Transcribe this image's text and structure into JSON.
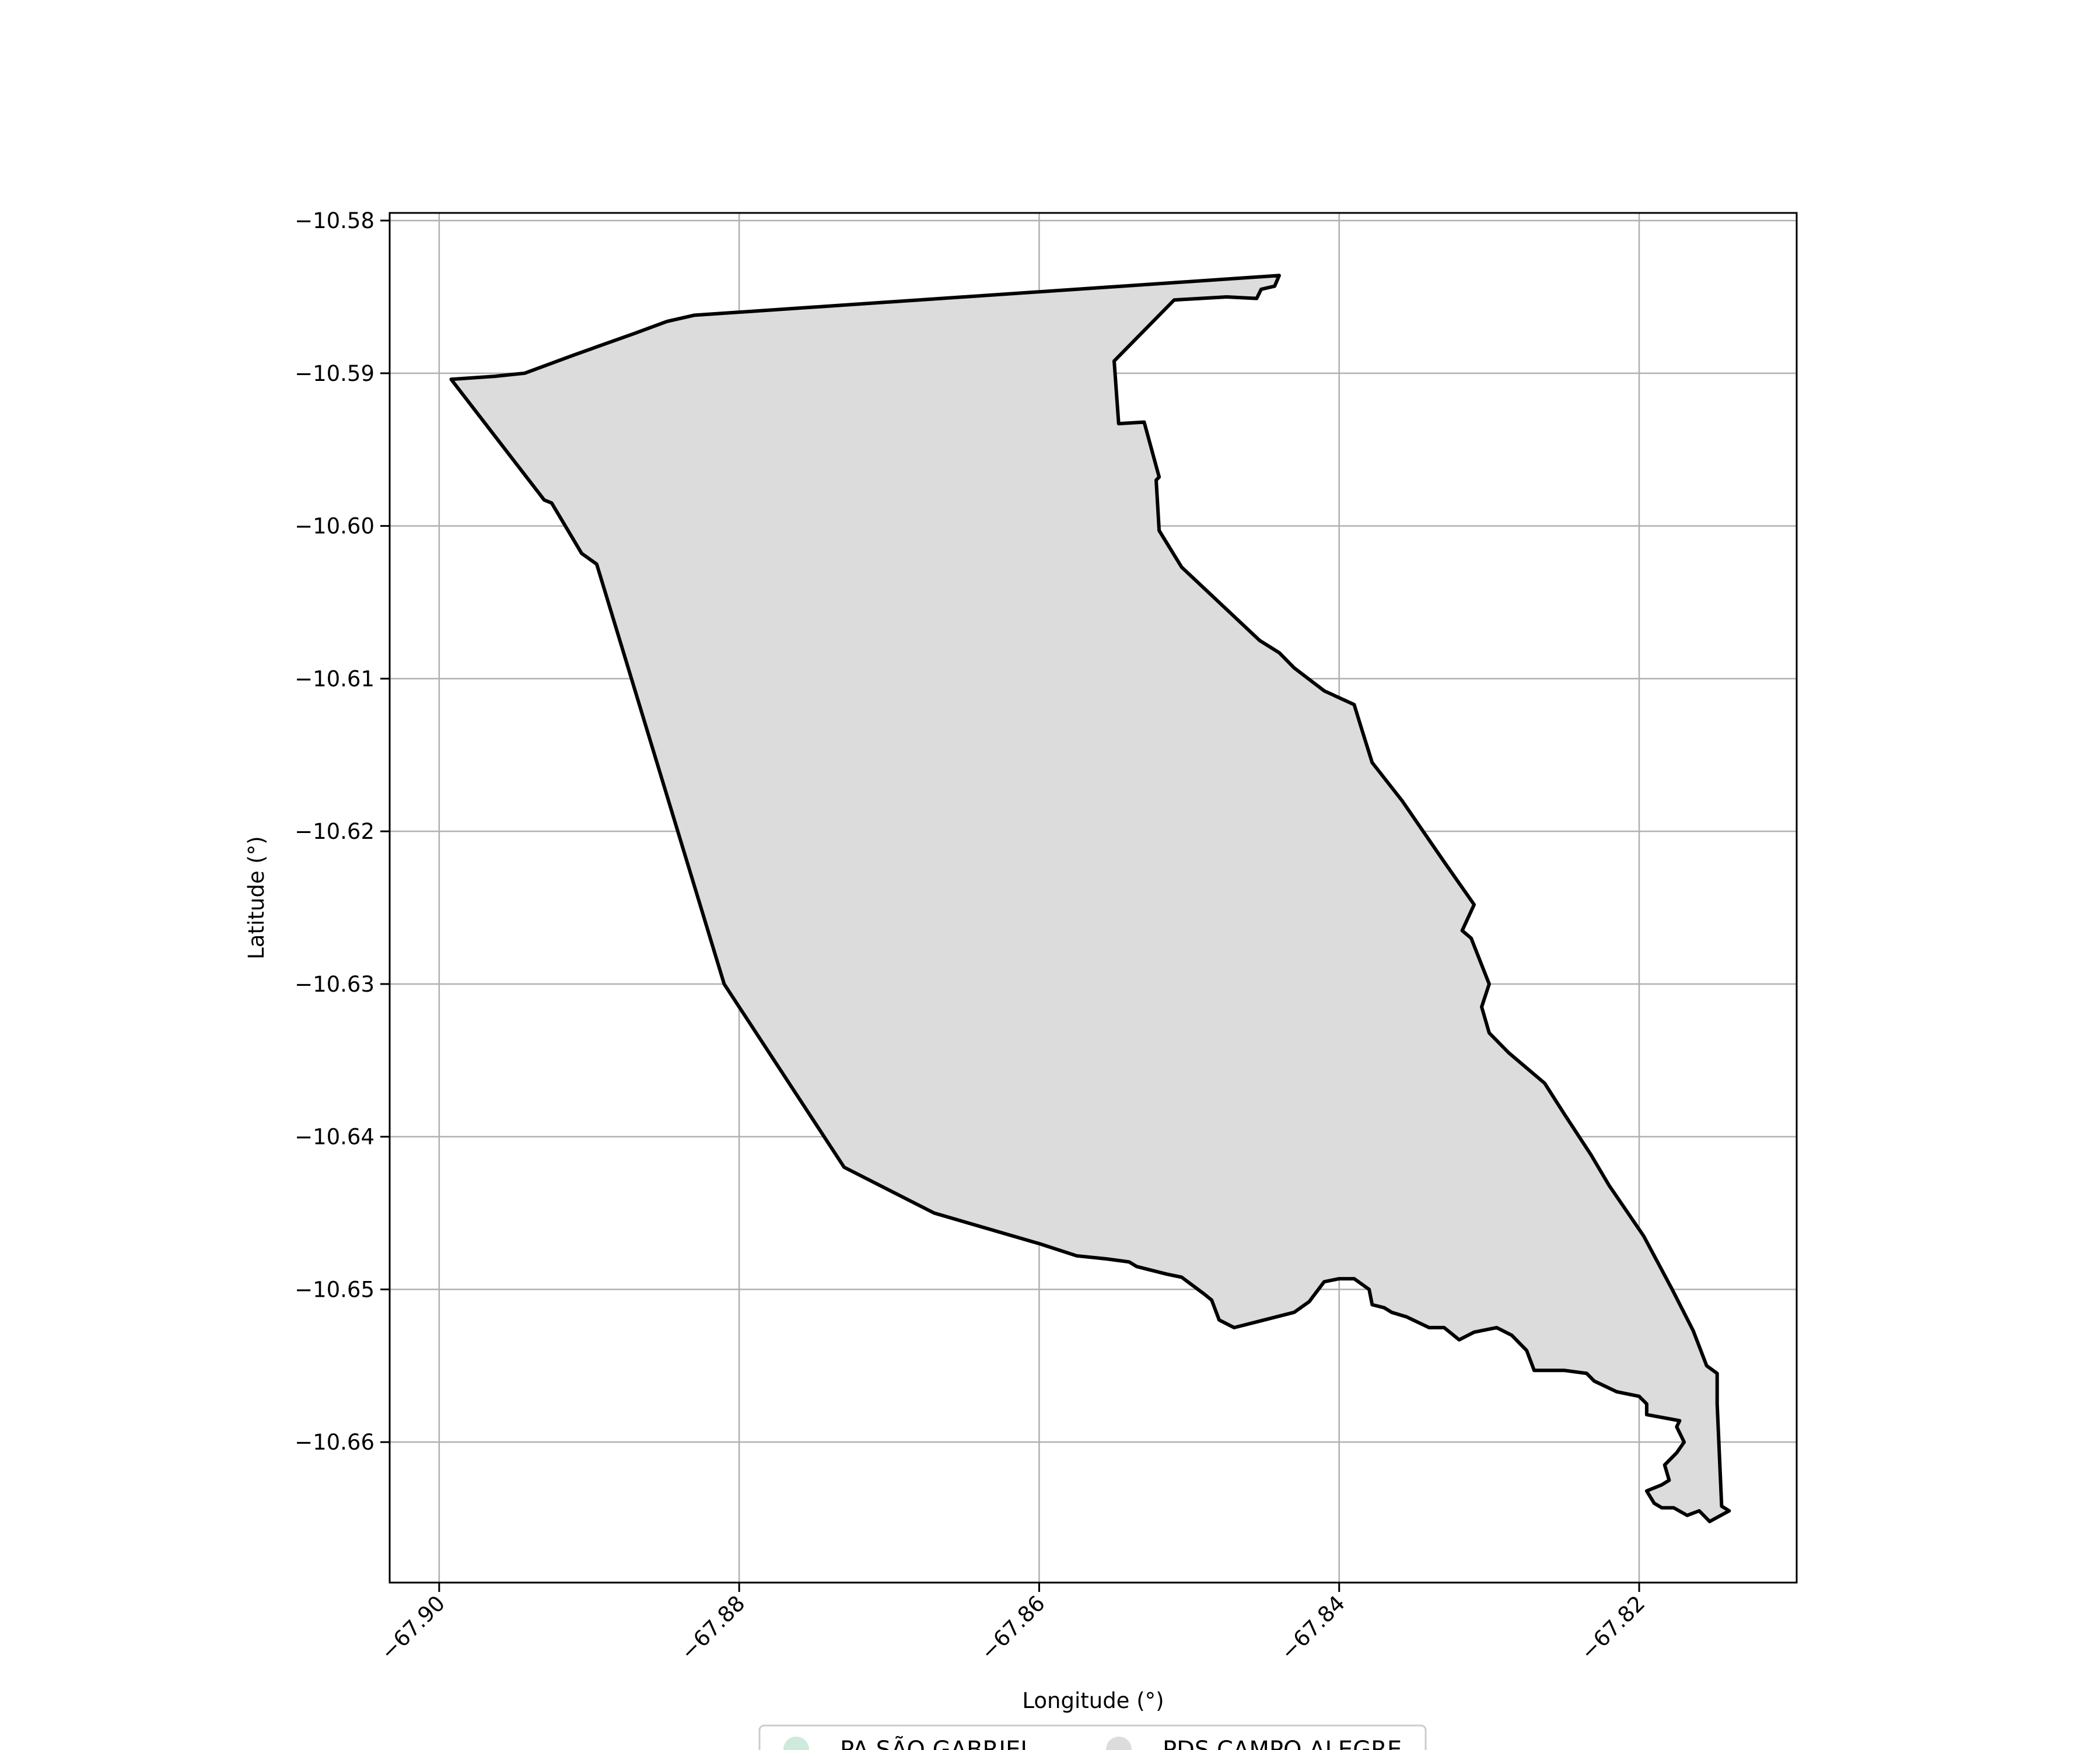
{
  "chart_data": {
    "type": "map",
    "xlabel": "Longitude (°)",
    "ylabel": "Latitude (°)",
    "xlim": [
      -67.9033,
      -67.8095
    ],
    "ylim": [
      -10.6692,
      -10.5795
    ],
    "x_ticks": [
      -67.9,
      -67.88,
      -67.86,
      -67.84,
      -67.82
    ],
    "x_tick_labels": [
      "−67.90",
      "−67.88",
      "−67.86",
      "−67.84",
      "−67.82"
    ],
    "y_ticks": [
      -10.58,
      -10.59,
      -10.6,
      -10.61,
      -10.62,
      -10.63,
      -10.64,
      -10.65,
      -10.66
    ],
    "y_tick_labels": [
      "−10.58",
      "−10.59",
      "−10.60",
      "−10.61",
      "−10.62",
      "−10.63",
      "−10.64",
      "−10.65",
      "−10.66"
    ],
    "grid": true,
    "legend": {
      "placement": "bottom-center",
      "entries": [
        {
          "label": "PA SÃO GABRIEL",
          "color": "#cdeadb"
        },
        {
          "label": "PDS CAMPO ALEGRE",
          "color": "#dcdcdc"
        }
      ]
    },
    "polygon": {
      "name": "PDS CAMPO ALEGRE",
      "fill": "#dcdcdc",
      "stroke": "#000000",
      "coords": [
        [
          -67.8992,
          -10.5904
        ],
        [
          -67.8963,
          -10.5902
        ],
        [
          -67.8943,
          -10.59
        ],
        [
          -67.891,
          -10.5888
        ],
        [
          -67.887,
          -10.5874
        ],
        [
          -67.8848,
          -10.5866
        ],
        [
          -67.883,
          -10.5862
        ],
        [
          -67.844,
          -10.5836
        ],
        [
          -67.8443,
          -10.5843
        ],
        [
          -67.8452,
          -10.5845
        ],
        [
          -67.8455,
          -10.5851
        ],
        [
          -67.8475,
          -10.585
        ],
        [
          -67.851,
          -10.5852
        ],
        [
          -67.855,
          -10.5892
        ],
        [
          -67.8547,
          -10.5933
        ],
        [
          -67.853,
          -10.5932
        ],
        [
          -67.852,
          -10.5968
        ],
        [
          -67.8522,
          -10.597
        ],
        [
          -67.852,
          -10.6003
        ],
        [
          -67.8505,
          -10.6027
        ],
        [
          -67.8453,
          -10.6075
        ],
        [
          -67.844,
          -10.6083
        ],
        [
          -67.843,
          -10.6093
        ],
        [
          -67.841,
          -10.6108
        ],
        [
          -67.839,
          -10.6117
        ],
        [
          -67.8385,
          -10.6133
        ],
        [
          -67.8378,
          -10.6155
        ],
        [
          -67.8358,
          -10.618
        ],
        [
          -67.833,
          -10.622
        ],
        [
          -67.831,
          -10.6248
        ],
        [
          -67.8318,
          -10.6265
        ],
        [
          -67.8312,
          -10.627
        ],
        [
          -67.83,
          -10.63
        ],
        [
          -67.8305,
          -10.6315
        ],
        [
          -67.83,
          -10.6332
        ],
        [
          -67.8287,
          -10.6345
        ],
        [
          -67.8263,
          -10.6365
        ],
        [
          -67.825,
          -10.6385
        ],
        [
          -67.824,
          -10.64
        ],
        [
          -67.8232,
          -10.6412
        ],
        [
          -67.822,
          -10.6432
        ],
        [
          -67.8197,
          -10.6465
        ],
        [
          -67.8178,
          -10.65
        ],
        [
          -67.8164,
          -10.6527
        ],
        [
          -67.8155,
          -10.655
        ],
        [
          -67.8148,
          -10.6555
        ],
        [
          -67.8148,
          -10.6575
        ],
        [
          -67.8145,
          -10.6642
        ],
        [
          -67.814,
          -10.6645
        ],
        [
          -67.8153,
          -10.6652
        ],
        [
          -67.816,
          -10.6645
        ],
        [
          -67.8168,
          -10.6648
        ],
        [
          -67.8177,
          -10.6643
        ],
        [
          -67.8185,
          -10.6643
        ],
        [
          -67.819,
          -10.664
        ],
        [
          -67.8195,
          -10.6632
        ],
        [
          -67.8185,
          -10.6628
        ],
        [
          -67.818,
          -10.6625
        ],
        [
          -67.8183,
          -10.6615
        ],
        [
          -67.8175,
          -10.6607
        ],
        [
          -67.817,
          -10.66
        ],
        [
          -67.8175,
          -10.659
        ],
        [
          -67.8173,
          -10.6586
        ],
        [
          -67.8195,
          -10.6582
        ],
        [
          -67.8195,
          -10.6575
        ],
        [
          -67.82,
          -10.657
        ],
        [
          -67.8215,
          -10.6567
        ],
        [
          -67.823,
          -10.656
        ],
        [
          -67.8235,
          -10.6555
        ],
        [
          -67.825,
          -10.6553
        ],
        [
          -67.827,
          -10.6553
        ],
        [
          -67.8275,
          -10.654
        ],
        [
          -67.8285,
          -10.653
        ],
        [
          -67.8295,
          -10.6525
        ],
        [
          -67.831,
          -10.6528
        ],
        [
          -67.832,
          -10.6533
        ],
        [
          -67.833,
          -10.6525
        ],
        [
          -67.834,
          -10.6525
        ],
        [
          -67.8355,
          -10.6518
        ],
        [
          -67.8365,
          -10.6515
        ],
        [
          -67.837,
          -10.6512
        ],
        [
          -67.8378,
          -10.651
        ],
        [
          -67.838,
          -10.65
        ],
        [
          -67.839,
          -10.6493
        ],
        [
          -67.84,
          -10.6493
        ],
        [
          -67.841,
          -10.6495
        ],
        [
          -67.842,
          -10.6508
        ],
        [
          -67.843,
          -10.6515
        ],
        [
          -67.845,
          -10.652
        ],
        [
          -67.847,
          -10.6525
        ],
        [
          -67.848,
          -10.652
        ],
        [
          -67.8485,
          -10.6507
        ],
        [
          -67.849,
          -10.6503
        ],
        [
          -67.8505,
          -10.6492
        ],
        [
          -67.8515,
          -10.649
        ],
        [
          -67.8535,
          -10.6485
        ],
        [
          -67.854,
          -10.6482
        ],
        [
          -67.8555,
          -10.648
        ],
        [
          -67.8575,
          -10.6478
        ],
        [
          -67.86,
          -10.647
        ],
        [
          -67.867,
          -10.645
        ],
        [
          -67.873,
          -10.642
        ],
        [
          -67.881,
          -10.63
        ],
        [
          -67.8895,
          -10.6025
        ],
        [
          -67.8905,
          -10.6018
        ],
        [
          -67.8925,
          -10.5985
        ],
        [
          -67.893,
          -10.5983
        ],
        [
          -67.8992,
          -10.5904
        ]
      ]
    }
  }
}
